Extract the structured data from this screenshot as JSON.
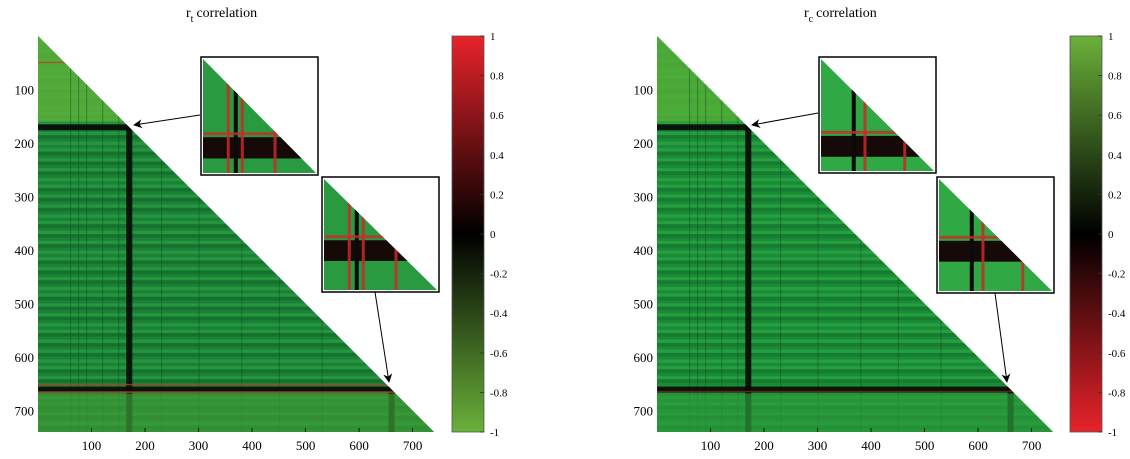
{
  "chart_data": [
    {
      "type": "heatmap",
      "title": {
        "main": "r",
        "sub": "t",
        "rest": "correlation"
      },
      "xlabel": "",
      "ylabel": "",
      "xlim": [
        0,
        740
      ],
      "ylim": [
        0,
        740
      ],
      "xticks": [
        "100",
        "200",
        "300",
        "400",
        "500",
        "600",
        "700"
      ],
      "yticks": [
        "100",
        "200",
        "300",
        "400",
        "500",
        "600",
        "700"
      ],
      "shape": "lower-triangle",
      "colorbar": {
        "labels": [
          "1",
          "0.8",
          "0.6",
          "0.4",
          "0.2",
          "0",
          "-0.2",
          "-0.4",
          "-0.6",
          "-0.8",
          "-1"
        ],
        "range": [
          -1,
          1
        ],
        "top_color": "#e8232a",
        "mid_color": "#000000",
        "bottom_color": "#6ab13a"
      },
      "base_color": "#1e8a3a",
      "highlight_bands": [
        {
          "index": 165,
          "approx_value": 0.1
        },
        {
          "index": 655,
          "approx_value": 0.15
        }
      ],
      "insets": [
        {
          "row": 165,
          "zoom": "top"
        },
        {
          "row": 655,
          "zoom": "bottom"
        }
      ]
    },
    {
      "type": "heatmap",
      "title": {
        "main": "r",
        "sub": "c",
        "rest": "correlation"
      },
      "xlabel": "",
      "ylabel": "",
      "xlim": [
        0,
        740
      ],
      "ylim": [
        0,
        740
      ],
      "xticks": [
        "100",
        "200",
        "300",
        "400",
        "500",
        "600",
        "700"
      ],
      "yticks": [
        "100",
        "200",
        "300",
        "400",
        "500",
        "600",
        "700"
      ],
      "shape": "lower-triangle",
      "colorbar": {
        "labels": [
          "1",
          "0.8",
          "0.6",
          "0.4",
          "0.2",
          "0",
          "-0.2",
          "-0.4",
          "-0.6",
          "-0.8",
          "-1"
        ],
        "range": [
          -1,
          1
        ],
        "top_color": "#6ab13a",
        "mid_color": "#000000",
        "bottom_color": "#e8232a"
      },
      "base_color": "#1fa03c",
      "highlight_bands": [
        {
          "index": 165,
          "approx_value": 0.05
        },
        {
          "index": 655,
          "approx_value": 0.05
        }
      ],
      "insets": [
        {
          "row": 165,
          "zoom": "top"
        },
        {
          "row": 655,
          "zoom": "bottom"
        }
      ]
    }
  ]
}
